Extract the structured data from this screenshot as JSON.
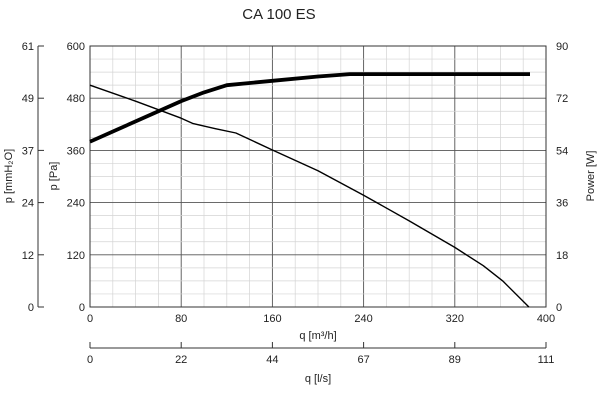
{
  "chart_data": {
    "type": "line",
    "title": "CA 100 ES",
    "xlabel": "q [m³/h]",
    "x2label": "q [l/s]",
    "ylabel": "p [Pa]",
    "y2label": "p [mmH₂O]",
    "y3label": "Power [W]",
    "xlim": [
      0,
      400
    ],
    "ylim": [
      0,
      600
    ],
    "y3lim": [
      0,
      90
    ],
    "grid": true,
    "x_ticks": [
      0,
      80,
      160,
      240,
      320,
      400
    ],
    "x2_ticks": [
      0,
      22,
      44,
      67,
      89,
      111
    ],
    "y_ticks": [
      0,
      120,
      240,
      360,
      480,
      600
    ],
    "y2_ticks": [
      0,
      12,
      24,
      37,
      49,
      61
    ],
    "y3_ticks": [
      0,
      18,
      36,
      54,
      72,
      90
    ],
    "series": [
      {
        "axis": "pressure",
        "points": [
          [
            0,
            510
          ],
          [
            40,
            473
          ],
          [
            80,
            434
          ],
          [
            90,
            422
          ],
          [
            110,
            410
          ],
          [
            128,
            400
          ],
          [
            160,
            361
          ],
          [
            200,
            313
          ],
          [
            240,
            257
          ],
          [
            280,
            198
          ],
          [
            320,
            137
          ],
          [
            345,
            95
          ],
          [
            362,
            60
          ],
          [
            385,
            0
          ]
        ]
      },
      {
        "axis": "power",
        "points": [
          [
            0,
            57
          ],
          [
            40,
            64
          ],
          [
            80,
            71
          ],
          [
            100,
            74
          ],
          [
            120,
            76.5
          ],
          [
            160,
            78
          ],
          [
            200,
            79.5
          ],
          [
            228,
            80.3
          ],
          [
            260,
            80.3
          ],
          [
            300,
            80.3
          ],
          [
            340,
            80.3
          ],
          [
            386,
            80.3
          ]
        ]
      }
    ]
  }
}
